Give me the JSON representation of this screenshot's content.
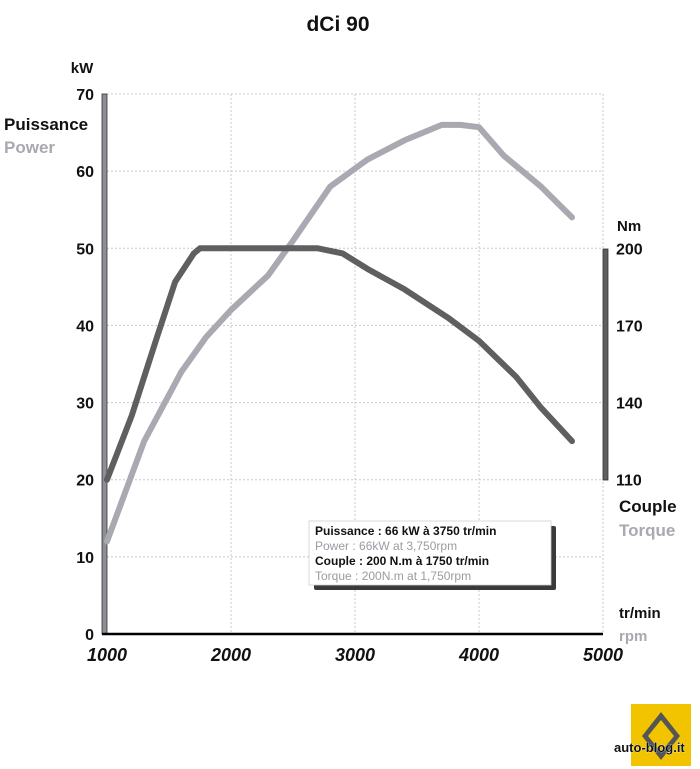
{
  "chart_data": {
    "type": "line",
    "title": "dCi 90",
    "x_axis": {
      "label_fr": "tr/min",
      "label_en": "rpm",
      "range": [
        1000,
        5000
      ],
      "ticks": [
        "1000",
        "2000",
        "3000",
        "4000",
        "5000"
      ]
    },
    "y_left": {
      "unit": "kW",
      "label_fr": "Puissance",
      "label_en": "Power",
      "range": [
        0,
        70
      ],
      "ticks": [
        "0",
        "10",
        "20",
        "30",
        "40",
        "50",
        "60",
        "70"
      ]
    },
    "y_right": {
      "unit": "Nm",
      "label_fr": "Couple",
      "label_en": "Torque",
      "range": [
        110,
        200
      ],
      "ticks": [
        "110",
        "140",
        "170",
        "200"
      ]
    },
    "grid": true,
    "series": [
      {
        "name": "Power",
        "axis": "left",
        "color": "#a8a9b1",
        "x": [
          1000,
          1300,
          1600,
          1800,
          2000,
          2300,
          2500,
          2800,
          3100,
          3400,
          3700,
          3850,
          4000,
          4200,
          4500,
          4750
        ],
        "y": [
          12,
          25,
          34,
          38.5,
          42,
          46.5,
          51,
          58,
          61.5,
          64,
          66,
          66,
          65.7,
          62,
          58,
          54
        ]
      },
      {
        "name": "Torque",
        "axis": "right",
        "color": "#5f5f61",
        "x": [
          1000,
          1200,
          1400,
          1550,
          1700,
          1750,
          2000,
          2500,
          2700,
          2900,
          3100,
          3400,
          3750,
          4000,
          4300,
          4500,
          4750
        ],
        "y": [
          110,
          135,
          165,
          187,
          198,
          200,
          200,
          200,
          200,
          198,
          192,
          184,
          173,
          164,
          150,
          138,
          125
        ]
      }
    ],
    "annotation": [
      {
        "text": "Puissance : 66 kW à 3750 tr/min",
        "style": "dark"
      },
      {
        "text": "Power : 66kW at 3,750rpm",
        "style": "light"
      },
      {
        "text": "Couple : 200 N.m à 1750 tr/min",
        "style": "dark"
      },
      {
        "text": "Torque : 200N.m at 1,750rpm",
        "style": "light"
      }
    ]
  },
  "logo": {
    "brand": "auto-blog.it",
    "color": "#f2c400"
  },
  "colors": {
    "power": "#a8a9b1",
    "torque": "#5f5f61",
    "grid": "#c8c8c8",
    "axis": "#000000"
  }
}
